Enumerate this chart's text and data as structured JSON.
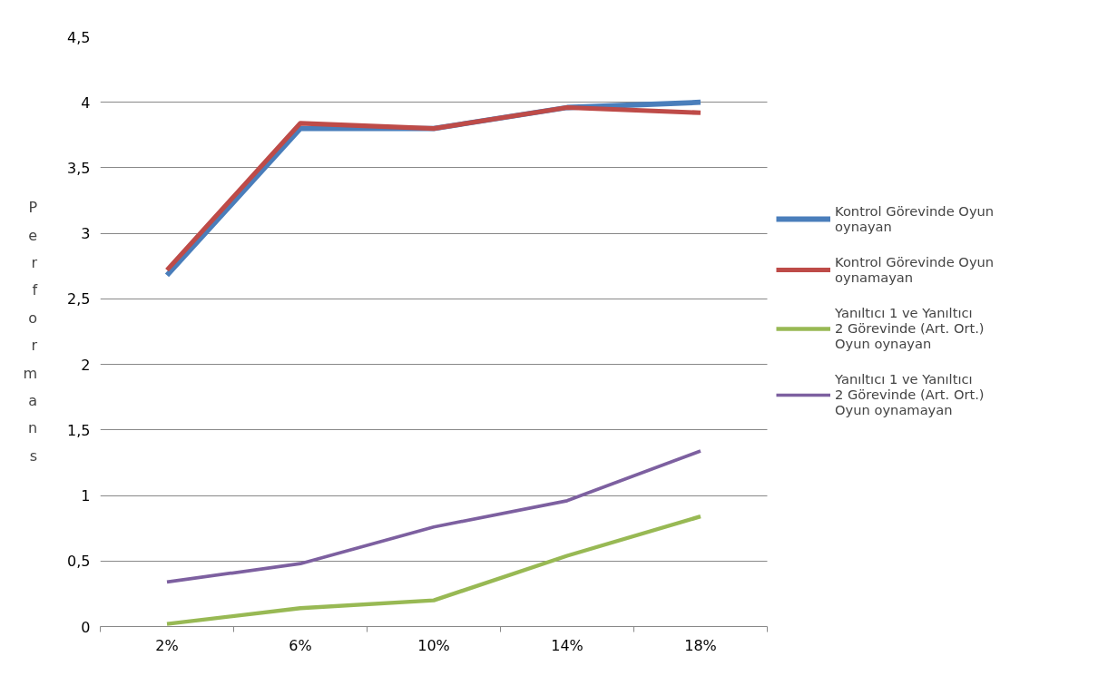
{
  "chart_data": {
    "type": "line",
    "ylabel": "Performans",
    "categories": [
      "2%",
      "6%",
      "10%",
      "14%",
      "18%"
    ],
    "series": [
      {
        "name": "Kontrol Görevinde Oyun oynayan",
        "color": "#4a7ebb",
        "values": [
          2.68,
          3.8,
          3.8,
          3.96,
          4.0
        ]
      },
      {
        "name": "Kontrol Görevinde Oyun oynamayan",
        "color": "#be4b48",
        "values": [
          2.72,
          3.84,
          3.8,
          3.96,
          3.92
        ]
      },
      {
        "name": "Yanıltıcı 1 ve Yanıltıcı 2 Görevinde (Art. Ort.) Oyun oynayan",
        "color": "#98b954",
        "values": [
          0.02,
          0.14,
          0.2,
          0.54,
          0.84
        ]
      },
      {
        "name": "Yanıltıcı 1 ve Yanıltıcı 2 Görevinde (Art. Ort.) Oyun oynamayan",
        "color": "#7d60a0",
        "values": [
          0.34,
          0.48,
          0.76,
          0.96,
          1.34
        ]
      }
    ],
    "ylim": [
      0,
      4.5
    ],
    "yticks": [
      {
        "value": 0,
        "label": "0"
      },
      {
        "value": 0.5,
        "label": "0,5"
      },
      {
        "value": 1,
        "label": "1"
      },
      {
        "value": 1.5,
        "label": "1,5"
      },
      {
        "value": 2,
        "label": "2"
      },
      {
        "value": 2.5,
        "label": "2,5"
      },
      {
        "value": 3,
        "label": "3"
      },
      {
        "value": 3.5,
        "label": "3,5"
      },
      {
        "value": 4,
        "label": "4"
      },
      {
        "value": 4.5,
        "label": "4,5"
      }
    ],
    "grid": "y",
    "legend": "right",
    "marker": "none",
    "line_style": "solid"
  }
}
